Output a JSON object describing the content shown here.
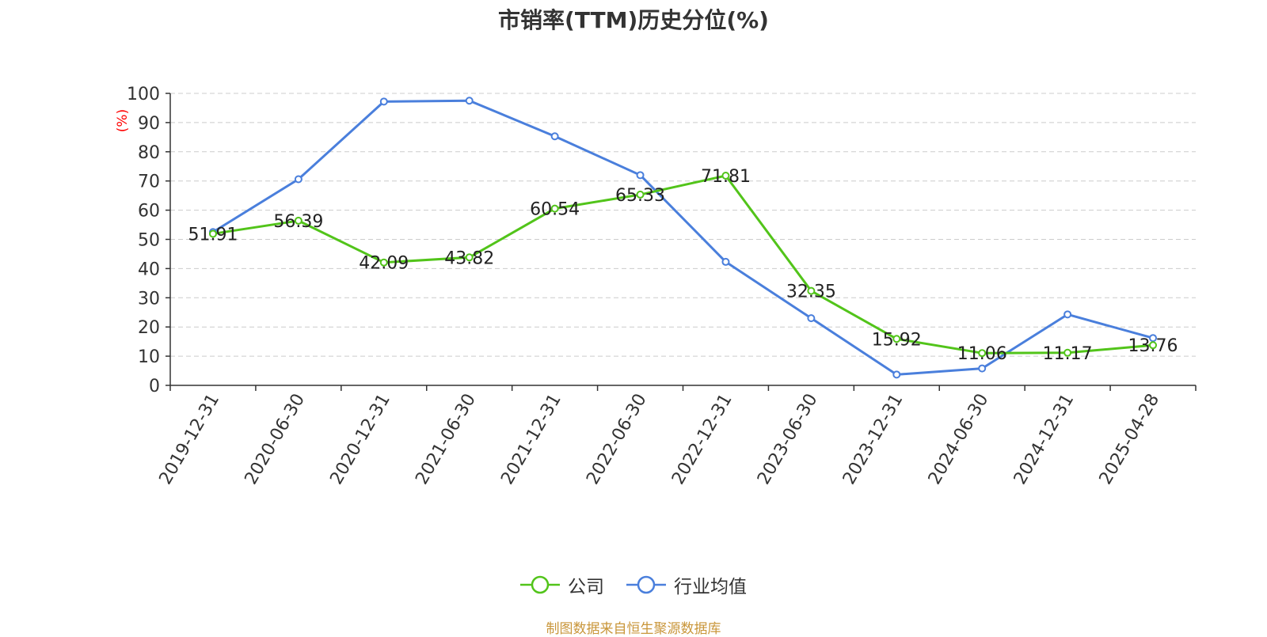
{
  "title": "市销率(TTM)历史分位(%)",
  "footer": "制图数据来自恒生聚源数据库",
  "colors": {
    "company": "#52c41a",
    "industry": "#4a7fdc",
    "axis": "#333333",
    "ylabel": "#ff0000",
    "grid": "#cccccc",
    "footer": "#c9963a"
  },
  "chart_data": {
    "type": "line",
    "title": "市销率(TTM)历史分位(%)",
    "ylabel": "(%)",
    "xlabel": "",
    "ylim": [
      0,
      100
    ],
    "yticks": [
      0,
      10,
      20,
      30,
      40,
      50,
      60,
      70,
      80,
      90,
      100
    ],
    "grid": true,
    "legend": "bottom-center",
    "categories": [
      "2019-12-31",
      "2020-06-30",
      "2020-12-31",
      "2021-06-30",
      "2021-12-31",
      "2022-06-30",
      "2022-12-31",
      "2023-06-30",
      "2023-12-31",
      "2024-06-30",
      "2024-12-31",
      "2025-04-28"
    ],
    "series": [
      {
        "name": "公司",
        "color": "#52c41a",
        "show_labels": true,
        "values": [
          51.91,
          56.39,
          42.09,
          43.82,
          60.54,
          65.33,
          71.81,
          32.35,
          15.92,
          11.06,
          11.17,
          13.76
        ]
      },
      {
        "name": "行业均值",
        "color": "#4a7fdc",
        "show_labels": false,
        "values": [
          52.5,
          70.6,
          97.2,
          97.5,
          85.3,
          72.0,
          42.3,
          23.0,
          3.7,
          5.8,
          24.3,
          16.2
        ]
      }
    ]
  }
}
